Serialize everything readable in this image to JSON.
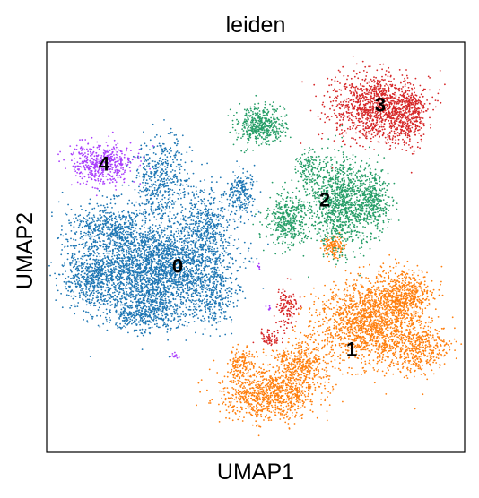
{
  "chart_data": {
    "type": "scatter",
    "title": "leiden",
    "xlabel": "UMAP1",
    "ylabel": "UMAP2",
    "legend": "on data",
    "grid": false,
    "ticks": false,
    "series": [
      {
        "name": "0",
        "color": "#1f77b4"
      },
      {
        "name": "1",
        "color": "#ff7f0e"
      },
      {
        "name": "2",
        "color": "#279e68"
      },
      {
        "name": "3",
        "color": "#d62728"
      },
      {
        "name": "4",
        "color": "#aa40fc"
      }
    ]
  }
}
